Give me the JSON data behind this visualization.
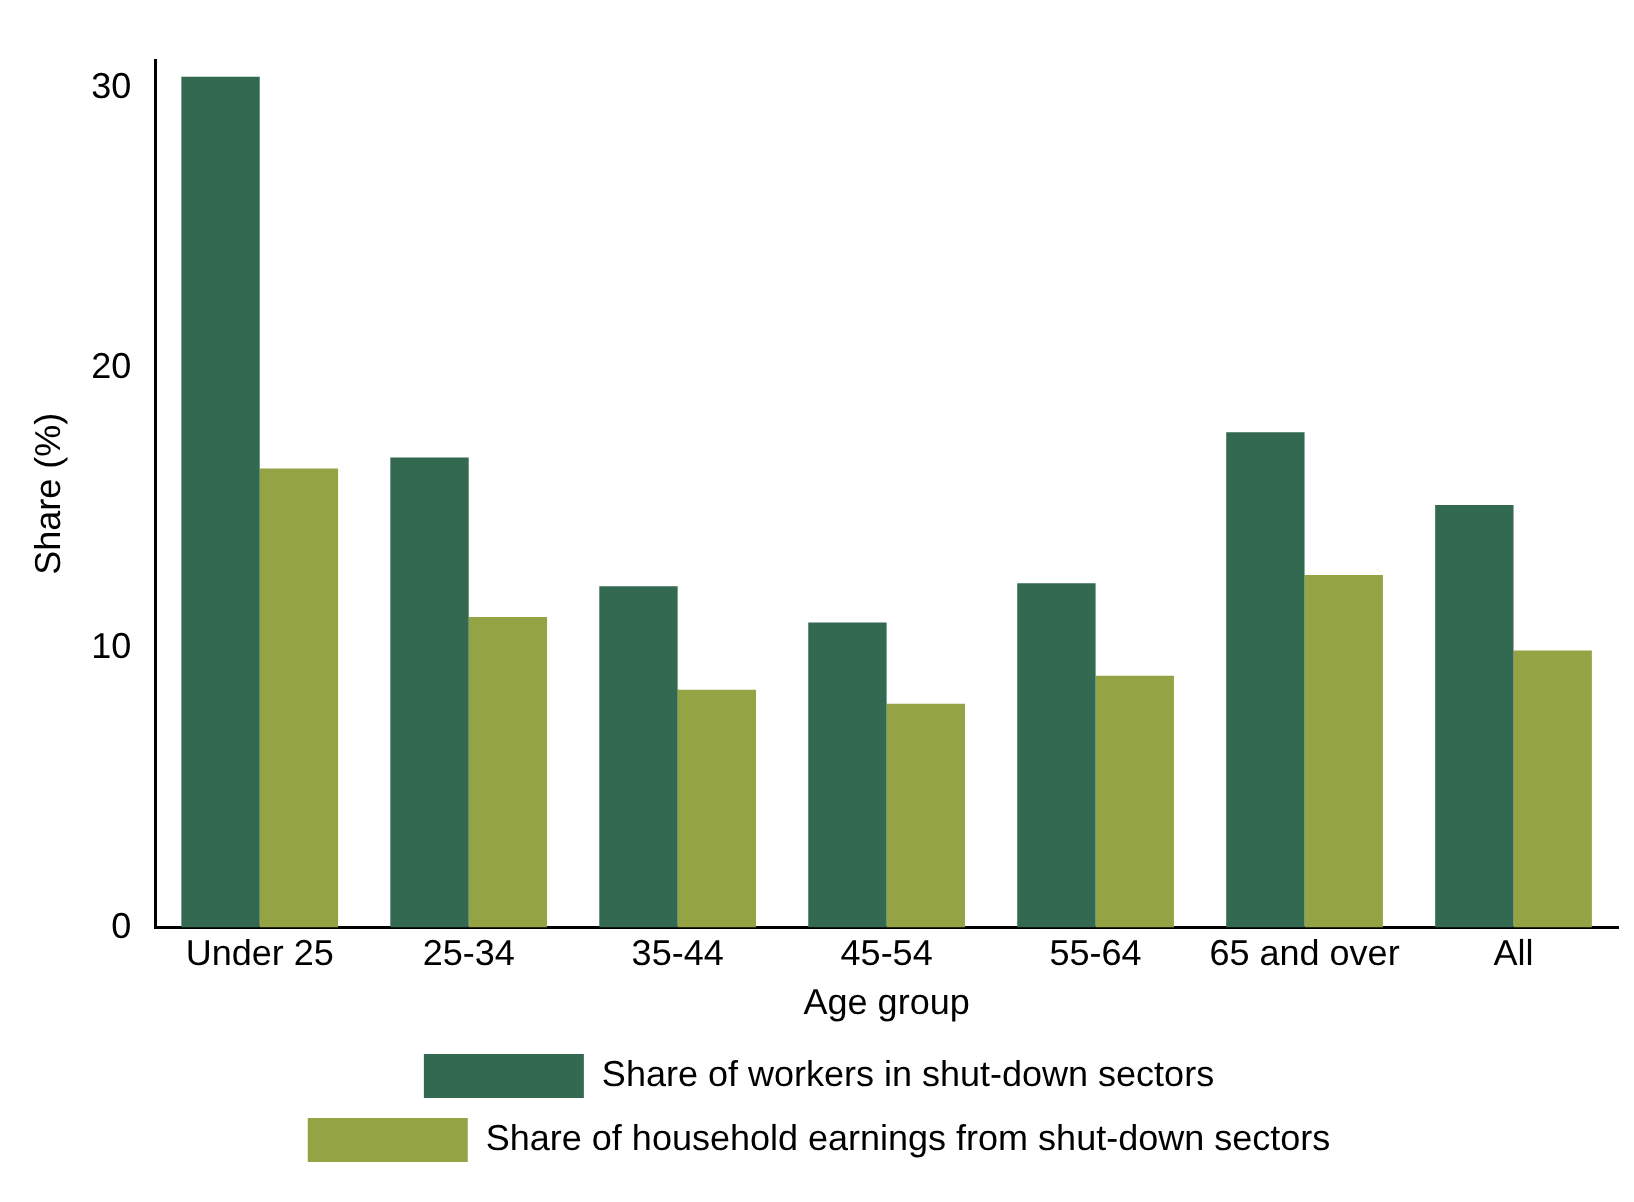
{
  "chart_data": {
    "type": "bar",
    "xlabel": "Age group",
    "ylabel": "Share (%)",
    "categories": [
      "Under 25",
      "25-34",
      "35-44",
      "45-54",
      "55-64",
      "65 and over",
      "All"
    ],
    "series": [
      {
        "name": "Share of workers in shut-down sectors",
        "color": "#336951",
        "values": [
          30.4,
          16.8,
          12.2,
          10.9,
          12.3,
          17.7,
          15.1
        ]
      },
      {
        "name": "Share of household earnings from shut-down sectors",
        "color": "#94a445",
        "values": [
          16.4,
          11.1,
          8.5,
          8.0,
          9.0,
          12.6,
          9.9
        ]
      }
    ],
    "ylim": [
      0,
      31
    ],
    "yticks": [
      0,
      10,
      20,
      30
    ],
    "grid": false,
    "legend": "bottom"
  }
}
